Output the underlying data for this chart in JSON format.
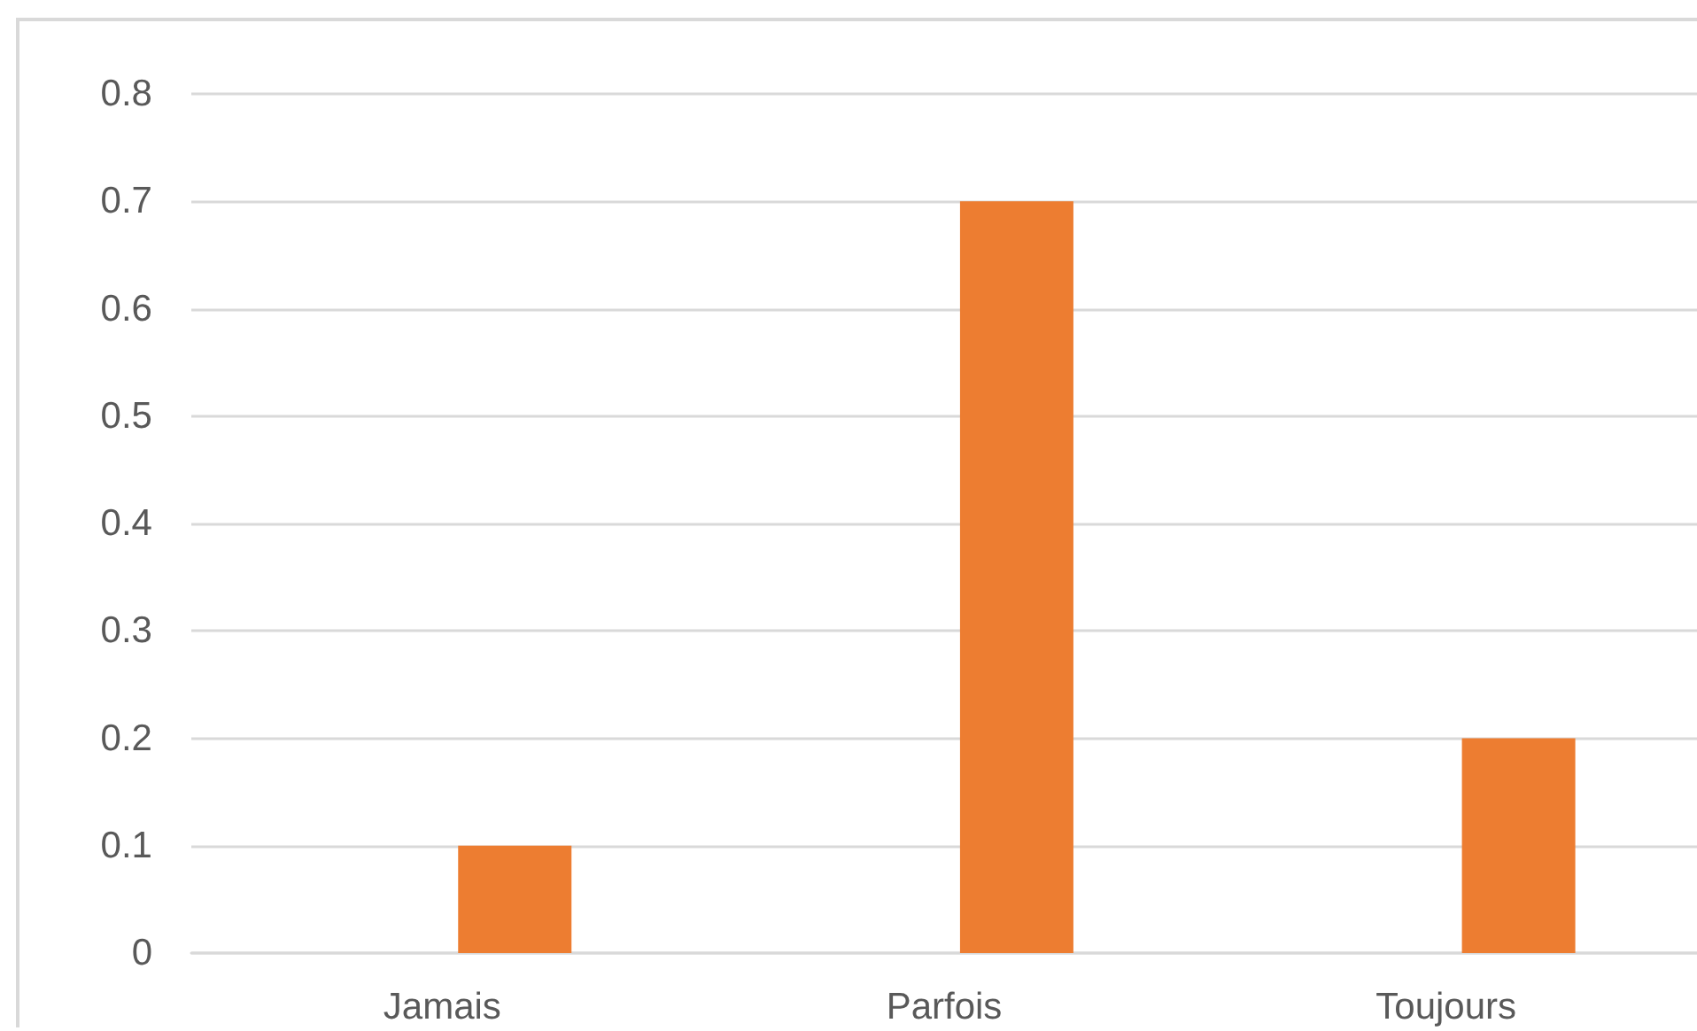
{
  "chart_data": {
    "type": "bar",
    "categories": [
      "Jamais",
      "Parfois",
      "Toujours"
    ],
    "values": [
      0.1,
      0.7,
      0.2
    ],
    "color": "#ed7d31",
    "ylim": [
      0,
      0.8
    ],
    "yticks": [
      0,
      0.1,
      0.2,
      0.3,
      0.4,
      0.5,
      0.6,
      0.7,
      0.8
    ],
    "grid": "y"
  }
}
